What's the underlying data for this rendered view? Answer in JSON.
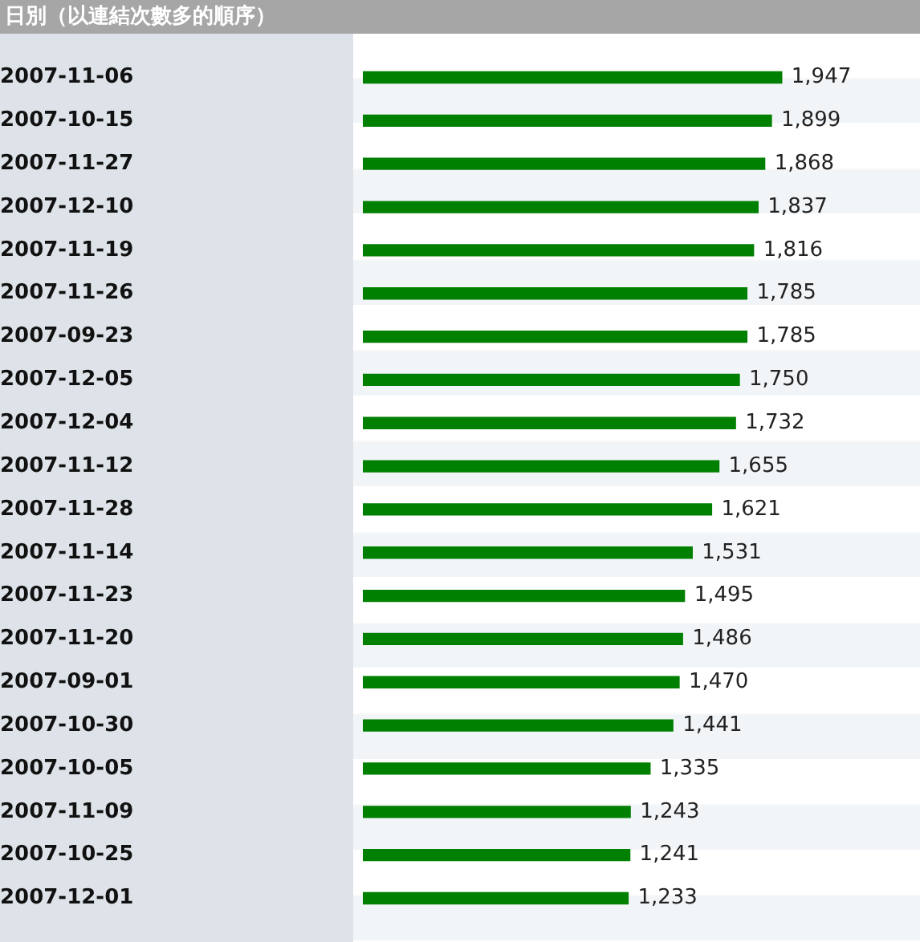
{
  "chart_data": {
    "type": "bar",
    "orientation": "horizontal",
    "title": "日別（以連結次數多的順序）",
    "categories": [
      "2007-11-06",
      "2007-10-15",
      "2007-11-27",
      "2007-12-10",
      "2007-11-19",
      "2007-11-26",
      "2007-09-23",
      "2007-12-05",
      "2007-12-04",
      "2007-11-12",
      "2007-11-28",
      "2007-11-14",
      "2007-11-23",
      "2007-11-20",
      "2007-09-01",
      "2007-10-30",
      "2007-10-05",
      "2007-11-09",
      "2007-10-25",
      "2007-12-01"
    ],
    "values": [
      1947,
      1899,
      1868,
      1837,
      1816,
      1785,
      1785,
      1750,
      1732,
      1655,
      1621,
      1531,
      1495,
      1486,
      1470,
      1441,
      1335,
      1243,
      1241,
      1233
    ],
    "value_labels": [
      "1,947",
      "1,899",
      "1,868",
      "1,837",
      "1,816",
      "1,785",
      "1,785",
      "1,750",
      "1,732",
      "1,655",
      "1,621",
      "1,531",
      "1,495",
      "1,486",
      "1,470",
      "1,441",
      "1,335",
      "1,243",
      "1,241",
      "1,233"
    ],
    "color": "#008000",
    "tick_labels": "y",
    "legend": false
  }
}
